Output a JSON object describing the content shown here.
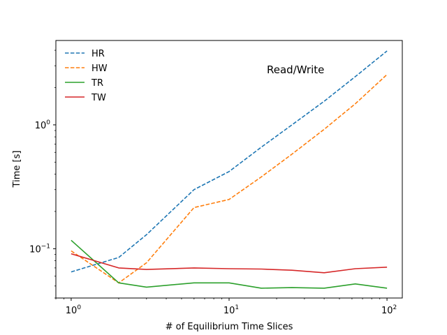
{
  "chart_data": {
    "type": "line",
    "xscale": "log",
    "yscale": "log",
    "xlabel": "# of Equilibrium Time Slices",
    "ylabel": "Time [s]",
    "xlim": [
      0.8,
      125
    ],
    "ylim": [
      0.04,
      4.8
    ],
    "x_ticks": [
      {
        "value": 1,
        "base": "10",
        "exp": "0"
      },
      {
        "value": 10,
        "base": "10",
        "exp": "1"
      },
      {
        "value": 100,
        "base": "10",
        "exp": "2"
      }
    ],
    "y_ticks": [
      {
        "value": 0.1,
        "base": "10",
        "exp": "−1"
      },
      {
        "value": 1,
        "base": "10",
        "exp": "0"
      }
    ],
    "annotation": "Read/Write",
    "legend_position": "top-left",
    "series": [
      {
        "name": "HR",
        "color": "#1f77b4",
        "style": "dashed",
        "x": [
          1,
          2,
          3,
          6,
          10,
          16,
          25,
          40,
          63,
          100
        ],
        "y": [
          0.065,
          0.085,
          0.13,
          0.3,
          0.42,
          0.66,
          1.0,
          1.55,
          2.45,
          3.95
        ]
      },
      {
        "name": "HW",
        "color": "#ff7f0e",
        "style": "dashed",
        "x": [
          1,
          2,
          3,
          6,
          10,
          16,
          25,
          40,
          63,
          100
        ],
        "y": [
          0.096,
          0.053,
          0.077,
          0.215,
          0.25,
          0.38,
          0.58,
          0.92,
          1.48,
          2.55
        ]
      },
      {
        "name": "TR",
        "color": "#2ca02c",
        "style": "solid",
        "x": [
          1,
          2,
          3,
          6,
          10,
          16,
          25,
          40,
          63,
          100
        ],
        "y": [
          0.117,
          0.053,
          0.049,
          0.053,
          0.053,
          0.048,
          0.0485,
          0.048,
          0.052,
          0.048
        ]
      },
      {
        "name": "TW",
        "color": "#d62728",
        "style": "solid",
        "x": [
          1,
          2,
          3,
          6,
          10,
          16,
          25,
          40,
          63,
          100
        ],
        "y": [
          0.091,
          0.07,
          0.068,
          0.07,
          0.069,
          0.0685,
          0.067,
          0.064,
          0.069,
          0.071
        ]
      }
    ]
  }
}
